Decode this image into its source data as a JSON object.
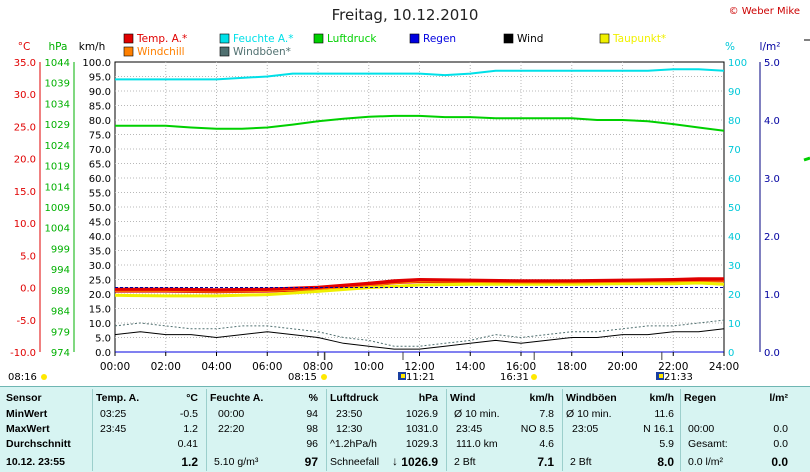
{
  "copyright": "© Weber Mike",
  "chart_data": {
    "type": "line",
    "title": "Freitag, 10.12.2010",
    "axes": {
      "temp_c": {
        "label": "°C",
        "min": -10,
        "max": 35,
        "ticks": [
          "35.0",
          "30.0",
          "25.0",
          "20.0",
          "15.0",
          "10.0",
          "5.0",
          "0.0",
          "-5.0",
          "-10.0"
        ],
        "color": "#e00000"
      },
      "hpa": {
        "label": "hPa",
        "min": 974,
        "max": 1044,
        "ticks": [
          "1044",
          "1039",
          "1034",
          "1029",
          "1024",
          "1019",
          "1014",
          "1009",
          "1004",
          "999",
          "994",
          "989",
          "984",
          "979",
          "974"
        ],
        "color": "#00b000"
      },
      "kmh": {
        "label": "km/h",
        "min": 0,
        "max": 100,
        "ticks": [
          "100.0",
          "95.0",
          "90.0",
          "85.0",
          "80.0",
          "75.0",
          "70.0",
          "65.0",
          "60.0",
          "55.0",
          "50.0",
          "45.0",
          "40.0",
          "35.0",
          "30.0",
          "25.0",
          "20.0",
          "15.0",
          "10.0",
          "5.0",
          "0.0"
        ],
        "color": "#000000"
      },
      "pct": {
        "label": "%",
        "min": 0,
        "max": 100,
        "ticks": [
          "100",
          "90",
          "80",
          "70",
          "60",
          "50",
          "40",
          "30",
          "20",
          "10",
          "0"
        ],
        "color": "#00c8d8"
      },
      "rain": {
        "label": "l/m²",
        "min": 0,
        "max": 5,
        "ticks": [
          "5.0",
          "4.0",
          "3.0",
          "2.0",
          "1.0",
          "0.0"
        ],
        "color": "#0000a0"
      }
    },
    "x_ticks": [
      "00:00",
      "02:00",
      "04:00",
      "06:00",
      "08:00",
      "10:00",
      "12:00",
      "14:00",
      "16:00",
      "18:00",
      "20:00",
      "22:00",
      "24:00"
    ],
    "sun_markers": [
      {
        "label": "08:16",
        "time": 8.27
      },
      {
        "label": "08:15",
        "time": 8.25
      },
      {
        "label": "11:21",
        "time": 11.35
      },
      {
        "label": "16:31",
        "time": 16.52
      },
      {
        "label": "21:33",
        "time": 21.55
      }
    ],
    "legend": [
      {
        "name": "Temp. A.*",
        "color": "#e00000"
      },
      {
        "name": "Feuchte A.*",
        "color": "#00e0e8"
      },
      {
        "name": "Luftdruck",
        "color": "#00d000"
      },
      {
        "name": "Regen",
        "color": "#0000e0"
      },
      {
        "name": "Wind",
        "color": "#000000"
      },
      {
        "name": "Taupunkt*",
        "color": "#f0f000"
      },
      {
        "name": "Windchill",
        "color": "#ff8000"
      },
      {
        "name": "Windböen*",
        "color": "#507070"
      }
    ],
    "series": [
      {
        "name": "Temp. A.*",
        "axis": "temp_c",
        "color": "#e00000",
        "width": 5,
        "x": [
          0,
          2,
          4,
          6,
          8,
          9,
          10,
          11,
          12,
          14,
          16,
          18,
          20,
          22,
          23,
          24
        ],
        "y": [
          -0.4,
          -0.4,
          -0.5,
          -0.4,
          -0.1,
          0.2,
          0.5,
          0.9,
          1.1,
          1.0,
          0.9,
          0.9,
          1.0,
          1.1,
          1.2,
          1.2
        ]
      },
      {
        "name": "Taupunkt*",
        "axis": "temp_c",
        "color": "#f0f000",
        "width": 3,
        "x": [
          0,
          2,
          4,
          6,
          8,
          10,
          12,
          14,
          16,
          18,
          20,
          22,
          23,
          24
        ],
        "y": [
          -1.2,
          -1.3,
          -1.3,
          -1.1,
          -0.6,
          0.0,
          0.4,
          0.5,
          0.5,
          0.5,
          0.6,
          0.6,
          0.7,
          0.5
        ]
      },
      {
        "name": "Windchill",
        "axis": "temp_c",
        "color": "#ff8000",
        "width": 1,
        "x": [
          0,
          2,
          4,
          6,
          8,
          10,
          12,
          14,
          16,
          18,
          20,
          22,
          24
        ],
        "y": [
          -0.6,
          -0.6,
          -0.7,
          -0.6,
          -0.3,
          0.3,
          0.9,
          0.8,
          0.7,
          0.7,
          0.8,
          0.9,
          1.0
        ]
      },
      {
        "name": "Feuchte A.*",
        "axis": "pct",
        "color": "#00e0e8",
        "width": 2,
        "x": [
          0,
          1,
          2,
          3,
          4,
          5,
          6,
          7,
          8,
          9,
          10,
          11,
          12,
          13,
          14,
          15,
          16,
          17,
          18,
          19,
          20,
          21,
          22,
          23,
          24
        ],
        "y": [
          94,
          94,
          94,
          94,
          94,
          94.5,
          95,
          96,
          96,
          96,
          96,
          96,
          96,
          95.5,
          96,
          97,
          97,
          97,
          97,
          97,
          97,
          97,
          97.5,
          97.5,
          97
        ]
      },
      {
        "name": "Luftdruck",
        "axis": "hpa",
        "color": "#00d000",
        "width": 2,
        "x": [
          0,
          1,
          2,
          3,
          4,
          5,
          6,
          7,
          8,
          9,
          10,
          11,
          12,
          13,
          14,
          15,
          16,
          17,
          18,
          19,
          20,
          21,
          22,
          23,
          24
        ],
        "y": [
          1028.6,
          1028.6,
          1028.6,
          1028.2,
          1027.9,
          1027.9,
          1028.2,
          1028.9,
          1029.7,
          1030.3,
          1030.8,
          1031.0,
          1031.0,
          1030.7,
          1030.7,
          1030.4,
          1030.4,
          1030.4,
          1030.4,
          1030.0,
          1030.0,
          1029.7,
          1029.0,
          1028.2,
          1027.4
        ]
      },
      {
        "name": "Wind",
        "axis": "kmh",
        "color": "#000000",
        "width": 1,
        "x": [
          0,
          1,
          2,
          3,
          4,
          5,
          6,
          7,
          8,
          9,
          10,
          11,
          12,
          13,
          14,
          15,
          16,
          17,
          18,
          19,
          20,
          21,
          22,
          23,
          24
        ],
        "y": [
          6,
          7,
          6,
          6,
          5,
          6,
          7,
          6,
          5,
          3,
          2,
          1,
          1,
          2,
          3,
          4,
          3,
          4,
          5,
          5,
          6,
          6,
          7,
          7,
          8
        ]
      },
      {
        "name": "Windböen*",
        "axis": "kmh",
        "color": "#507070",
        "width": 1,
        "dashed": true,
        "x": [
          0,
          1,
          2,
          3,
          4,
          5,
          6,
          7,
          8,
          9,
          10,
          11,
          12,
          13,
          14,
          15,
          16,
          17,
          18,
          19,
          20,
          21,
          22,
          23,
          24
        ],
        "y": [
          9,
          10,
          9,
          8,
          8,
          9,
          9,
          8,
          7,
          5,
          4,
          2,
          2,
          3,
          4,
          6,
          5,
          6,
          7,
          7,
          8,
          9,
          9,
          10,
          11
        ]
      },
      {
        "name": "Regen",
        "axis": "rain",
        "color": "#0000e0",
        "width": 1,
        "x": [
          0,
          24
        ],
        "y": [
          0,
          0
        ]
      }
    ]
  },
  "table": {
    "sensor": {
      "header": "Sensor",
      "rows": [
        "MinWert",
        "MaxWert",
        "Durchschnitt",
        "10.12. 23:55"
      ]
    },
    "temp": {
      "header": "Temp. A.",
      "unit": "°C",
      "min_time": "03:25",
      "min": "-0.5",
      "max_time": "23:45",
      "max": "1.2",
      "avg": "0.41",
      "current": "1.2"
    },
    "humidity": {
      "header": "Feuchte A.",
      "unit": "%",
      "min_time": "00:00",
      "min": "94",
      "max_time": "22:20",
      "max": "98",
      "avg": "96",
      "abs": "5.10 g/m³",
      "current": "97"
    },
    "pressure": {
      "header": "Luftdruck",
      "unit": "hPa",
      "min_time": "23:50",
      "min": "1026.9",
      "max_time": "12:30",
      "max": "1031.0",
      "trend_label": "^1.2hPa/h",
      "avg": "1029.3",
      "forecast": "Schneefall",
      "arrow": "↓",
      "current": "1026.9"
    },
    "wind": {
      "header": "Wind",
      "unit": "km/h",
      "r1_label": "Ø 10 min.",
      "r1_val": "7.8",
      "r2_time": "23:45",
      "r2_dir": "NO 8.5",
      "r3_label": "111.0 km",
      "r3_val": "4.6",
      "bft": "2 Bft",
      "current": "7.1"
    },
    "gusts": {
      "header": "Windböen",
      "unit": "km/h",
      "r1_label": "Ø 10 min.",
      "r1_val": "11.6",
      "r2_time": "23:05",
      "r2_dir": "N 16.1",
      "avg": "5.9",
      "bft": "2 Bft",
      "current": "8.0"
    },
    "rain": {
      "header": "Regen",
      "unit": "l/m²",
      "r2_time": "00:00",
      "r2_val": "0.0",
      "total_label": "Gesamt:",
      "total_val": "0.0",
      "cur_label": "0.0 l/m²",
      "current": "0.0"
    }
  }
}
